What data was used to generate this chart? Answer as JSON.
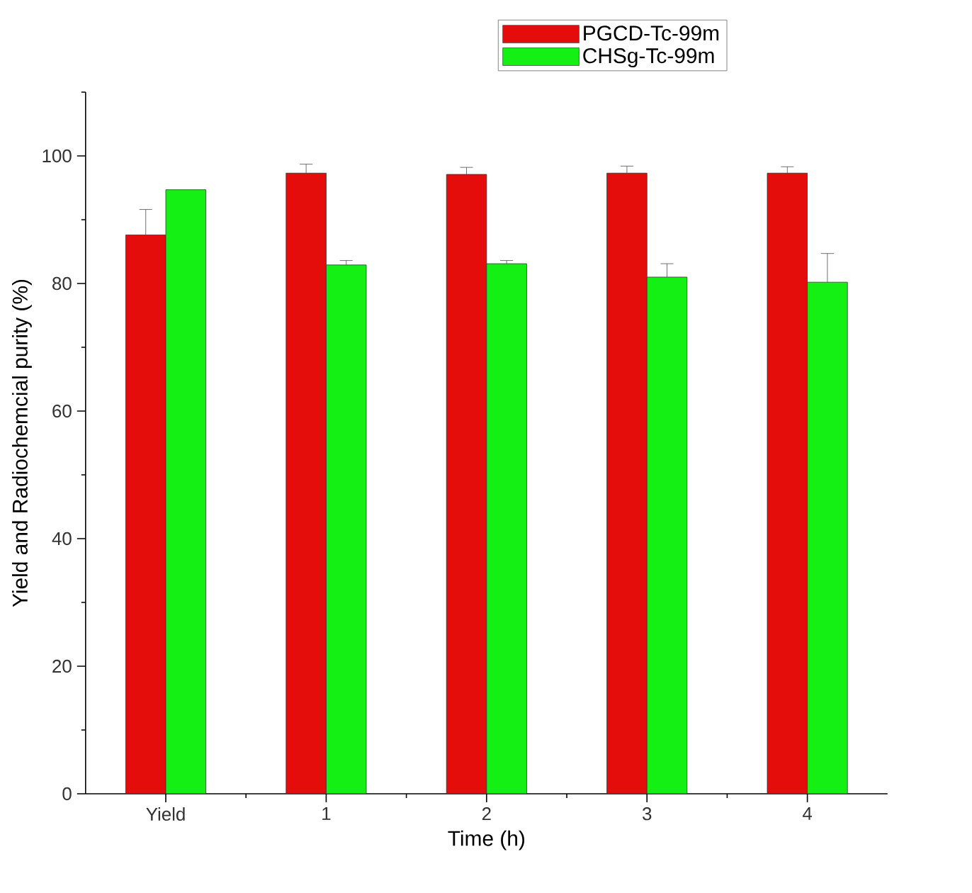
{
  "chart_data": {
    "type": "bar",
    "xlabel": "Time (h)",
    "ylabel": "Yield and Radiochemcial purity (%)",
    "categories": [
      "Yield",
      "1",
      "2",
      "3",
      "4"
    ],
    "series": [
      {
        "name": "PGCD-Tc-99m",
        "color": "#e50c0c",
        "values": [
          87.6,
          97.3,
          97.1,
          97.3,
          97.3
        ],
        "errors": [
          [
            87.6,
            91.6
          ],
          [
            97.3,
            98.7
          ],
          [
            97.1,
            98.2
          ],
          [
            97.3,
            98.4
          ],
          [
            97.3,
            98.3
          ]
        ]
      },
      {
        "name": "CHSg-Tc-99m",
        "color": "#14f014",
        "values": [
          94.7,
          82.9,
          83.1,
          81.0,
          80.2
        ],
        "errors": [
          null,
          [
            82.9,
            83.6
          ],
          [
            83.1,
            83.6
          ],
          [
            81.0,
            83.1
          ],
          [
            80.2,
            84.7
          ]
        ]
      }
    ],
    "ylim": [
      0,
      110
    ],
    "yticks": [
      0,
      {
        "value": 10,
        "label": null
      },
      20,
      {
        "value": 30,
        "label": null
      },
      40,
      {
        "value": 50,
        "label": null
      },
      60,
      {
        "value": 70,
        "label": null
      },
      80,
      {
        "value": 90,
        "label": null
      },
      100,
      {
        "value": 110,
        "label": null
      }
    ],
    "legend": "top right"
  }
}
